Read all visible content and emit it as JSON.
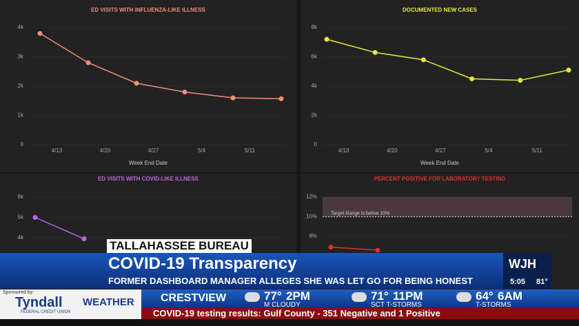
{
  "chart_data": [
    {
      "type": "line",
      "title": "ED VISITS WITH INFLUENZA-LIKE ILLNESS",
      "x_label": "Week End Date",
      "categories": [
        "4/13",
        "4/20",
        "4/27",
        "5/4",
        "5/11",
        null
      ],
      "series": [
        {
          "color": "#f0907a",
          "values": [
            3800,
            2800,
            2100,
            1800,
            1600,
            1570
          ]
        }
      ],
      "ylim": [
        0,
        4000
      ],
      "yticks": [
        0,
        {
          "value": 1000,
          "label": "1k"
        },
        {
          "value": 2000,
          "label": "2k"
        },
        {
          "value": 3000,
          "label": "3k"
        },
        {
          "value": 4000,
          "label": "4k"
        }
      ],
      "grid": true,
      "title_color": "#f0907a"
    },
    {
      "type": "line",
      "title": "DOCUMENTED NEW CASES",
      "x_label": "Week End Date",
      "categories": [
        "4/13",
        "4/20",
        "4/27",
        "5/4",
        "5/11",
        null
      ],
      "series": [
        {
          "color": "#e8e840",
          "values": [
            7200,
            6300,
            5800,
            4500,
            4400,
            5100
          ]
        }
      ],
      "ylim": [
        0,
        8000
      ],
      "yticks": [
        0,
        {
          "value": 2000,
          "label": "2k"
        },
        {
          "value": 4000,
          "label": "4k"
        },
        {
          "value": 6000,
          "label": "6k"
        },
        {
          "value": 8000,
          "label": "8k"
        }
      ],
      "grid": true,
      "title_color": "#e8e840"
    },
    {
      "type": "line",
      "title": "ED VISITS WITH COVID-LIKE ILLNESS",
      "categories": [
        null,
        null
      ],
      "series": [
        {
          "color": "#c066e0",
          "values": [
            5000,
            3950
          ]
        }
      ],
      "ylim": [
        0,
        6000
      ],
      "yticks": [
        {
          "value": 4000,
          "label": "4k"
        },
        {
          "value": 5000,
          "label": "5k"
        },
        {
          "value": 6000,
          "label": "6k"
        }
      ],
      "grid": true,
      "title_color": "#c066e0"
    },
    {
      "type": "line",
      "title": "PERCENT POSITIVE FOR LABORATORY TESTING",
      "categories": [
        null,
        null
      ],
      "series": [
        {
          "color": "#e0302a",
          "values": [
            6.9,
            6.6
          ]
        }
      ],
      "ylim": [
        0,
        12
      ],
      "yticks": [
        {
          "value": 8,
          "label": "8%"
        },
        {
          "value": 10,
          "label": "10%"
        },
        {
          "value": 12,
          "label": "12%"
        }
      ],
      "threshold": 10,
      "annotation": "Target Range is below 10%",
      "grid": true,
      "title_color": "#e0302a"
    }
  ],
  "overlay": {
    "bureau": "TALLAHASSEE BUREAU",
    "headline": "COVID-19 Transparency",
    "subline": "FORMER DASHBOARD MANAGER ALLEGES SHE WAS LET GO FOR BEING HONEST",
    "station": "WJH",
    "time": "5:05",
    "temp": "81°",
    "sponsor_label": "Sponsored by:",
    "sponsor": "Tyndall",
    "sponsor_sub": "FEDERAL CREDIT UNION",
    "weather_label": "WEATHER",
    "city": "CRESTVIEW",
    "forecast": [
      {
        "temp": "77°",
        "time": "2PM",
        "cond": "M CLOUDY"
      },
      {
        "temp": "71°",
        "time": "11PM",
        "cond": "SCT T-STORMS"
      },
      {
        "temp": "64°",
        "time": "6AM",
        "cond": "T-STORMS"
      }
    ],
    "ticker": "COVID-19 testing results: Gulf County - 351 Negative and 1 Positive"
  }
}
